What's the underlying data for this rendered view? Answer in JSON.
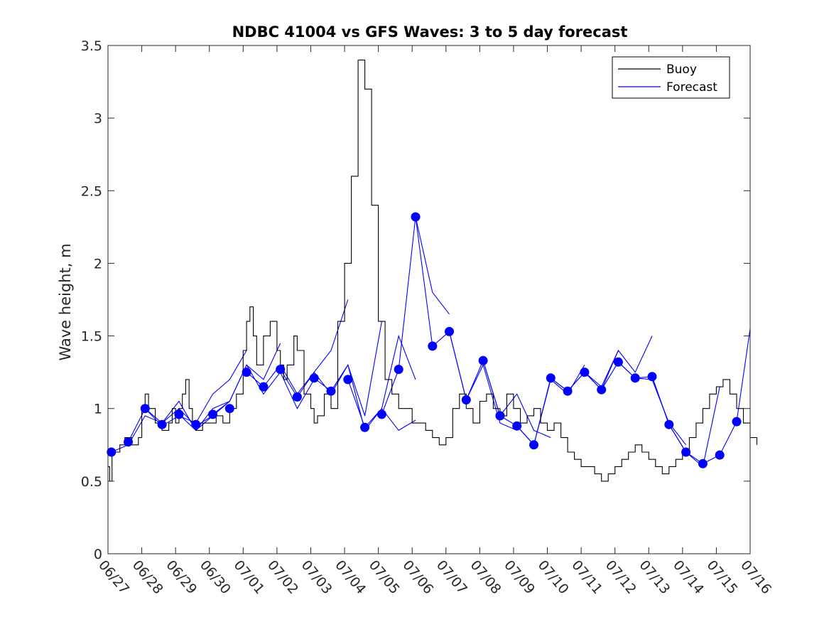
{
  "chart_data": {
    "type": "line",
    "title": "NDBC 41004 vs GFS Waves: 3 to 5 day forecast",
    "xlabel": "",
    "ylabel": "Wave height, m",
    "xlim": [
      "06/27",
      "07/16"
    ],
    "ylim": [
      0,
      3.5
    ],
    "yticks": [
      "0",
      "0.5",
      "1",
      "1.5",
      "2",
      "2.5",
      "3",
      "3.5"
    ],
    "xticks": [
      "06/27",
      "06/28",
      "06/29",
      "06/30",
      "07/01",
      "07/02",
      "07/03",
      "07/04",
      "07/05",
      "07/06",
      "07/07",
      "07/08",
      "07/09",
      "07/10",
      "07/11",
      "07/12",
      "07/13",
      "07/14",
      "07/15",
      "07/16"
    ],
    "legend": {
      "position": "top-right",
      "entries": [
        {
          "label": "Buoy",
          "color": "#000000"
        },
        {
          "label": "Forecast",
          "color": "#0000ff"
        }
      ]
    },
    "colors": {
      "buoy": "#000000",
      "forecast": "#0000ff"
    },
    "series": [
      {
        "name": "Buoy",
        "x": [
          0,
          0.05,
          0.12,
          0.2,
          0.35,
          0.5,
          0.7,
          0.9,
          1.0,
          1.1,
          1.2,
          1.4,
          1.6,
          1.8,
          1.9,
          2.0,
          2.1,
          2.2,
          2.3,
          2.4,
          2.5,
          2.6,
          2.8,
          3.0,
          3.2,
          3.4,
          3.6,
          3.8,
          4.0,
          4.1,
          4.2,
          4.3,
          4.4,
          4.6,
          4.8,
          5.0,
          5.1,
          5.2,
          5.3,
          5.5,
          5.6,
          5.8,
          6.0,
          6.1,
          6.2,
          6.4,
          6.6,
          6.8,
          7.0,
          7.2,
          7.4,
          7.6,
          7.8,
          8.0,
          8.2,
          8.4,
          8.6,
          8.8,
          9.0,
          9.2,
          9.4,
          9.6,
          9.8,
          10.0,
          10.2,
          10.4,
          10.6,
          10.8,
          11.0,
          11.2,
          11.4,
          11.6,
          11.8,
          12.0,
          12.2,
          12.4,
          12.6,
          12.8,
          13.0,
          13.2,
          13.4,
          13.6,
          13.8,
          14.0,
          14.2,
          14.4,
          14.6,
          14.8,
          15.0,
          15.2,
          15.4,
          15.6,
          15.8,
          16.0,
          16.2,
          16.4,
          16.6,
          16.8,
          17.0,
          17.2,
          17.4,
          17.6,
          17.8,
          18.0,
          18.2,
          18.4,
          18.6,
          18.8,
          19.0,
          19.2
        ],
        "values": [
          0.6,
          0.5,
          0.7,
          0.7,
          0.75,
          0.8,
          0.75,
          0.8,
          1.0,
          1.1,
          1.0,
          0.9,
          0.85,
          0.9,
          1.0,
          0.9,
          1.0,
          1.1,
          1.2,
          1.0,
          0.9,
          0.85,
          0.9,
          0.9,
          0.95,
          0.9,
          1.0,
          1.1,
          1.4,
          1.6,
          1.7,
          1.5,
          1.3,
          1.5,
          1.6,
          1.4,
          1.3,
          1.2,
          1.3,
          1.5,
          1.4,
          1.1,
          1.0,
          0.9,
          0.95,
          1.1,
          1.0,
          1.6,
          2.0,
          2.6,
          3.4,
          3.2,
          2.4,
          1.6,
          1.2,
          1.1,
          1.0,
          1.0,
          0.9,
          0.9,
          0.85,
          0.8,
          0.75,
          0.8,
          1.0,
          1.1,
          1.0,
          0.9,
          1.05,
          1.1,
          1.0,
          0.95,
          1.1,
          1.0,
          0.9,
          0.95,
          1.0,
          0.9,
          0.85,
          0.9,
          0.8,
          0.7,
          0.65,
          0.6,
          0.6,
          0.55,
          0.5,
          0.55,
          0.6,
          0.65,
          0.7,
          0.75,
          0.7,
          0.65,
          0.6,
          0.55,
          0.6,
          0.65,
          0.7,
          0.8,
          0.9,
          1.0,
          1.1,
          1.15,
          1.2,
          1.1,
          1.0,
          0.9,
          0.8,
          0.75
        ]
      },
      {
        "name": "Forecast",
        "x": [
          0,
          0.5,
          1.0,
          1.5,
          2.0,
          2.5,
          3.0,
          3.5,
          4.0,
          4.5,
          5.0,
          5.5,
          6.0,
          6.5,
          7.0,
          7.5,
          8.0,
          8.5,
          9.0,
          9.5,
          10.0,
          10.5,
          11.0,
          11.5,
          12.0,
          12.5,
          13.0,
          13.5,
          14.0,
          14.5,
          15.0,
          15.5,
          16.0,
          16.5,
          17.0,
          17.5,
          18.0,
          18.5,
          19.0
        ],
        "values": [
          0.7,
          0.77,
          1.0,
          0.89,
          0.96,
          0.89,
          0.96,
          1.0,
          1.25,
          1.15,
          1.27,
          1.08,
          1.21,
          1.12,
          1.2,
          0.87,
          0.96,
          1.27,
          2.32,
          1.43,
          1.53,
          1.06,
          1.33,
          0.95,
          0.88,
          0.75,
          1.21,
          1.12,
          1.25,
          1.13,
          1.32,
          1.21,
          1.22,
          0.89,
          0.7,
          0.62,
          0.68,
          0.91,
          1.55
        ]
      }
    ],
    "forecast_points": {
      "x": [
        0.1,
        0.6,
        1.1,
        1.6,
        2.1,
        2.6,
        3.1,
        3.6,
        4.1,
        4.6,
        5.1,
        5.6,
        6.1,
        6.6,
        7.1,
        7.6,
        8.1,
        8.6,
        9.1,
        9.6,
        10.1,
        10.6,
        11.1,
        11.6,
        12.1,
        12.6,
        13.1,
        13.6,
        14.1,
        14.6,
        15.1,
        15.6,
        16.1,
        16.6,
        17.1,
        17.6,
        18.1,
        18.6
      ],
      "values": [
        0.7,
        0.77,
        1.0,
        0.89,
        0.96,
        0.89,
        0.96,
        1.0,
        1.25,
        1.15,
        1.27,
        1.08,
        1.21,
        1.12,
        1.2,
        0.87,
        0.96,
        1.27,
        2.32,
        1.43,
        1.53,
        1.06,
        1.33,
        0.95,
        0.88,
        0.75,
        1.21,
        1.12,
        1.25,
        1.13,
        1.32,
        1.21,
        1.22,
        0.89,
        0.7,
        0.62,
        0.68,
        0.91
      ]
    },
    "forecast_runs": [
      {
        "x": [
          0.1,
          0.6,
          1.1,
          1.6,
          2.1,
          2.6,
          3.1
        ],
        "values": [
          0.7,
          0.75,
          0.95,
          0.9,
          1.0,
          0.88,
          0.95
        ]
      },
      {
        "x": [
          0.6,
          1.1,
          1.6,
          2.1,
          2.6,
          3.1,
          3.6
        ],
        "values": [
          0.77,
          1.0,
          0.9,
          1.05,
          0.85,
          0.95,
          1.05
        ]
      },
      {
        "x": [
          1.1,
          1.6,
          2.1,
          2.6,
          3.1,
          3.6,
          4.1
        ],
        "values": [
          1.0,
          0.88,
          0.95,
          0.9,
          1.1,
          1.2,
          1.4
        ]
      },
      {
        "x": [
          2.1,
          2.6,
          3.1,
          3.6,
          4.1,
          4.6,
          5.1
        ],
        "values": [
          0.96,
          0.85,
          1.0,
          1.05,
          1.3,
          1.2,
          1.45
        ]
      },
      {
        "x": [
          3.1,
          3.6,
          4.1,
          4.6,
          5.1,
          5.6,
          6.1
        ],
        "values": [
          0.96,
          1.05,
          1.3,
          1.1,
          1.25,
          1.0,
          1.2
        ]
      },
      {
        "x": [
          4.1,
          4.6,
          5.1,
          5.6,
          6.1,
          6.6,
          7.1
        ],
        "values": [
          1.25,
          1.15,
          1.3,
          1.1,
          1.25,
          1.4,
          1.75
        ]
      },
      {
        "x": [
          5.1,
          5.6,
          6.1,
          6.6,
          7.1,
          7.6,
          8.1
        ],
        "values": [
          1.27,
          1.08,
          1.25,
          1.1,
          1.3,
          0.95,
          1.6
        ]
      },
      {
        "x": [
          6.1,
          6.6,
          7.1,
          7.6,
          8.1,
          8.6,
          9.1
        ],
        "values": [
          1.21,
          1.12,
          1.3,
          0.85,
          1.0,
          1.5,
          1.2
        ]
      },
      {
        "x": [
          7.1,
          7.6,
          8.1,
          8.6,
          9.1
        ],
        "values": [
          1.2,
          0.87,
          1.0,
          0.85,
          0.92
        ]
      },
      {
        "x": [
          8.1,
          8.6,
          9.1,
          9.6,
          10.1
        ],
        "values": [
          0.96,
          1.27,
          2.32,
          1.8,
          1.65
        ]
      },
      {
        "x": [
          9.1,
          9.6,
          10.1,
          10.6,
          11.1,
          11.6,
          12.1
        ],
        "values": [
          2.32,
          1.43,
          1.53,
          1.06,
          1.3,
          0.9,
          0.85
        ]
      },
      {
        "x": [
          10.1,
          10.6,
          11.1,
          11.6,
          12.1,
          12.6,
          13.1
        ],
        "values": [
          1.53,
          1.06,
          1.33,
          0.95,
          1.1,
          0.85,
          0.8
        ]
      },
      {
        "x": [
          11.1,
          11.6,
          12.1,
          12.6,
          13.1,
          13.6,
          14.1
        ],
        "values": [
          1.33,
          0.95,
          0.88,
          0.75,
          1.2,
          1.1,
          1.3
        ]
      },
      {
        "x": [
          12.1,
          12.6,
          13.1,
          13.6,
          14.1,
          14.6,
          15.1
        ],
        "values": [
          0.88,
          0.75,
          1.21,
          1.12,
          1.25,
          1.15,
          1.4
        ]
      },
      {
        "x": [
          13.1,
          13.6,
          14.1,
          14.6,
          15.1,
          15.6,
          16.1
        ],
        "values": [
          1.21,
          1.12,
          1.25,
          1.13,
          1.4,
          1.25,
          1.5
        ]
      },
      {
        "x": [
          14.1,
          14.6,
          15.1,
          15.6,
          16.1,
          16.6,
          17.1
        ],
        "values": [
          1.25,
          1.13,
          1.32,
          1.21,
          1.2,
          0.9,
          0.75
        ]
      },
      {
        "x": [
          15.1,
          15.6,
          16.1,
          16.6,
          17.1,
          17.6,
          18.1
        ],
        "values": [
          1.32,
          1.21,
          1.22,
          0.89,
          0.7,
          0.6,
          1.15
        ]
      },
      {
        "x": [
          16.1,
          16.6,
          17.1,
          17.6,
          18.1,
          18.6,
          19.0
        ],
        "values": [
          1.22,
          0.89,
          0.7,
          0.62,
          0.68,
          0.91,
          1.55
        ]
      }
    ],
    "grid": false
  }
}
